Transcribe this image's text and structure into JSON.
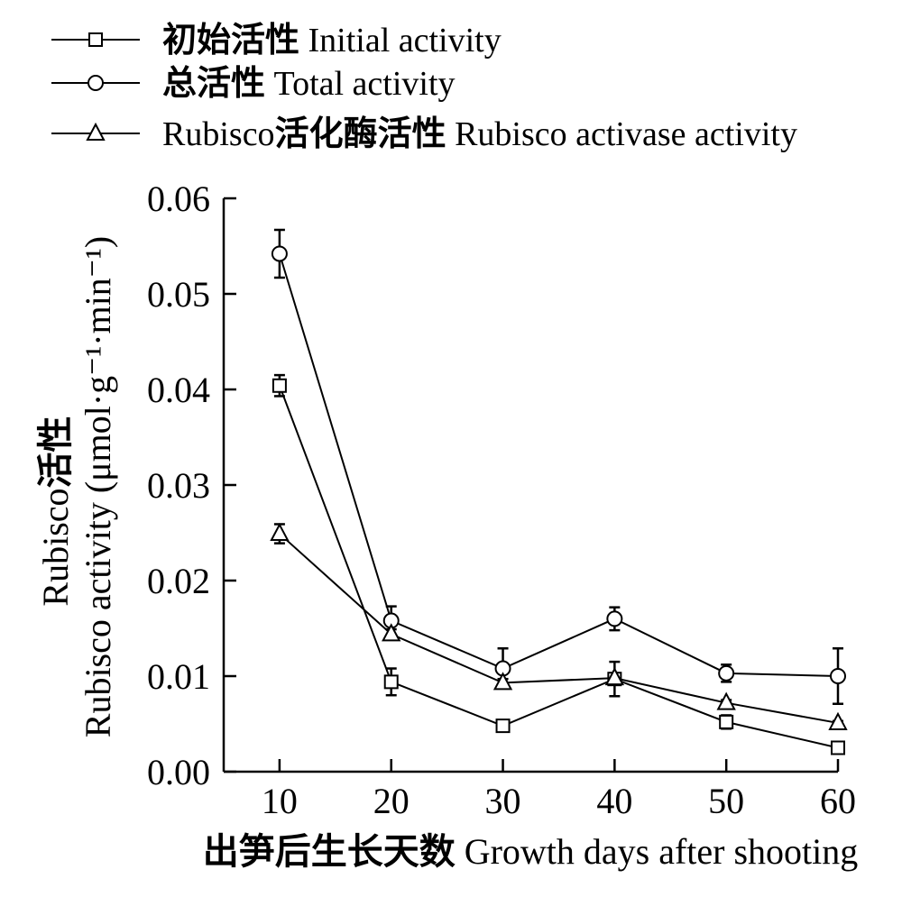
{
  "chart_data": {
    "type": "line",
    "xlabel": "出笋后生长天数 Growth days after shooting",
    "ylabel": [
      "Rubisco活性",
      "Rubisco activity (μmol·g⁻¹·min⁻¹)"
    ],
    "x": [
      10,
      20,
      30,
      40,
      50,
      60
    ],
    "xlim": [
      5,
      60
    ],
    "ylim": [
      0,
      0.06
    ],
    "xticks": [
      10,
      20,
      30,
      40,
      50,
      60
    ],
    "xtick_labels": [
      "10",
      "20",
      "30",
      "40",
      "50",
      "60"
    ],
    "yticks": [
      0,
      0.01,
      0.02,
      0.03,
      0.04,
      0.05,
      0.06
    ],
    "ytick_labels": [
      "0.00",
      "0.01",
      "0.02",
      "0.03",
      "0.04",
      "0.05",
      "0.06"
    ],
    "grid": false,
    "legend": "top-left",
    "colors": {
      "line": "#000000",
      "marker_fill": "#ffffff",
      "background": "#ffffff"
    },
    "series": [
      {
        "name": "初始活性 Initial activity",
        "marker": "square",
        "values": [
          0.0404,
          0.0094,
          0.0048,
          0.0097,
          0.0052,
          0.0025
        ],
        "errors": [
          0.0011,
          0.0014,
          0.0002,
          0.0018,
          0.0007,
          0.0002
        ]
      },
      {
        "name": "总活性 Total activity",
        "marker": "circle",
        "values": [
          0.0542,
          0.0158,
          0.0108,
          0.016,
          0.0103,
          0.01
        ],
        "errors": [
          0.0025,
          0.0015,
          0.0021,
          0.0012,
          0.0009,
          0.0029
        ]
      },
      {
        "name": "Rubisco活化酶活性 Rubisco activase activity",
        "marker": "triangle",
        "values": [
          0.0249,
          0.0144,
          0.0093,
          0.0098,
          0.0072,
          0.0051
        ],
        "errors": [
          0.001,
          0.0005,
          0.0004,
          0.0005,
          0.0003,
          0.0002
        ]
      }
    ]
  }
}
